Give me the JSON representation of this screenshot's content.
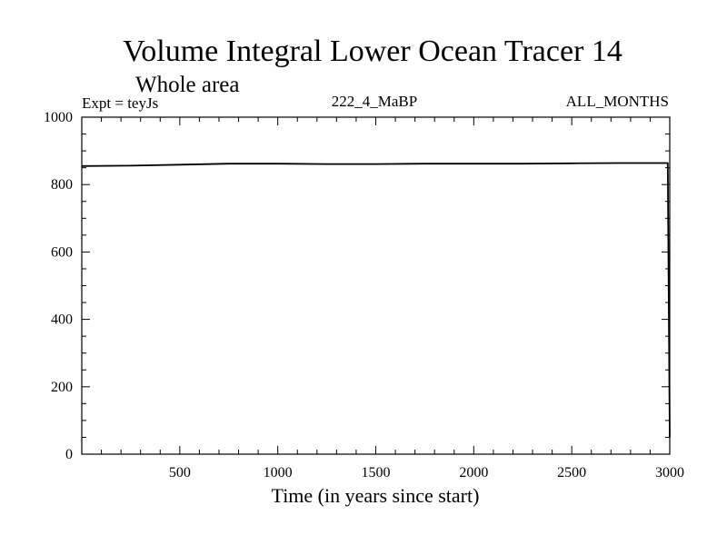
{
  "chart_data": {
    "type": "line",
    "title": "Volume Integral Lower Ocean Tracer 14",
    "subtitle": "Whole area",
    "experiment_label": "Expt = teyJs",
    "run_label": "222_4_MaBP",
    "period_label": "ALL_MONTHS",
    "xlabel": "Time (in years since start)",
    "ylabel": "",
    "xlim": [
      0,
      3000
    ],
    "ylim": [
      0,
      1000
    ],
    "x_ticks": [
      500,
      1000,
      1500,
      2000,
      2500,
      3000
    ],
    "y_ticks": [
      0,
      200,
      400,
      600,
      800,
      1000
    ],
    "grid": false,
    "line_color": "#000000",
    "series": [
      {
        "x": [
          0,
          250,
          500,
          750,
          1000,
          1250,
          1500,
          1750,
          2000,
          2250,
          2500,
          2750,
          2990,
          3000
        ],
        "y": [
          855,
          856,
          859,
          862,
          862,
          861,
          861,
          862,
          862,
          862,
          863,
          864,
          864,
          50
        ]
      }
    ]
  }
}
